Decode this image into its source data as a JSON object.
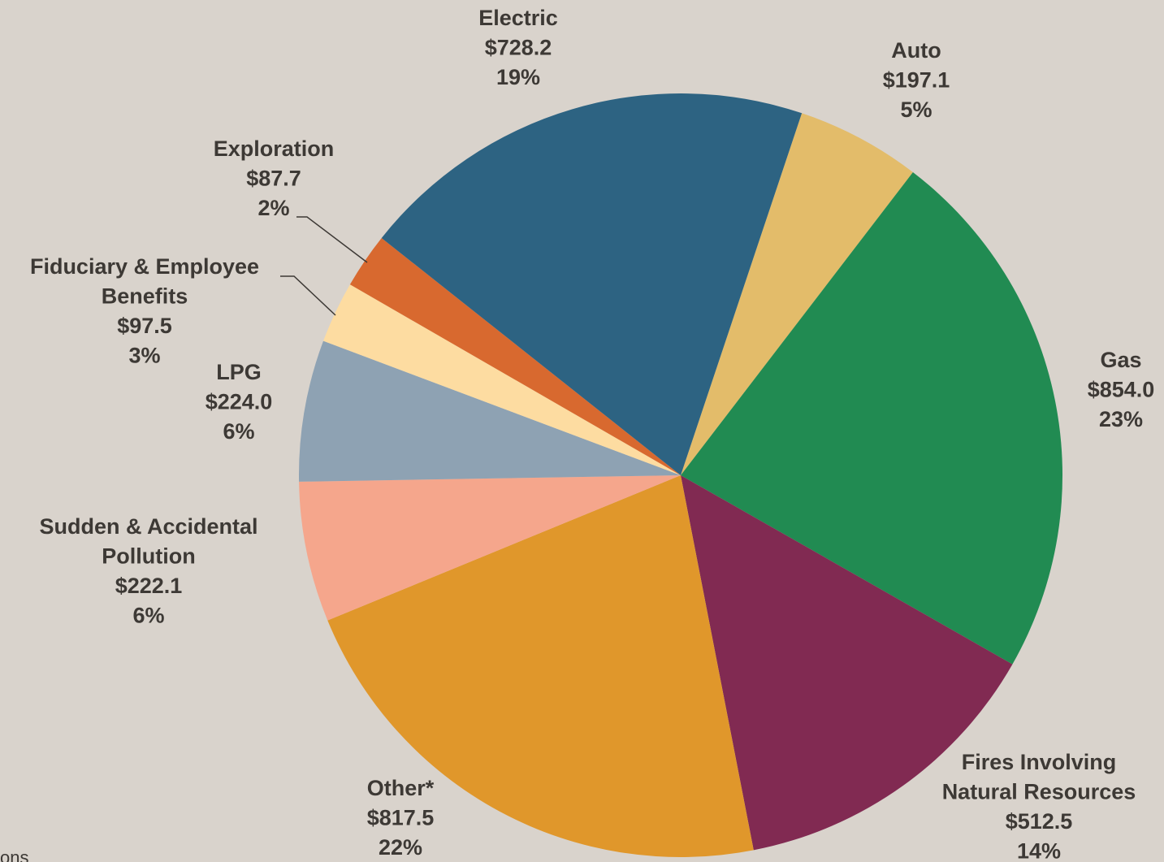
{
  "chart_data": {
    "type": "pie",
    "categories": [
      [
        "Auto"
      ],
      [
        "Gas"
      ],
      [
        "Fires Involving",
        "Natural Resources"
      ],
      [
        "Other*"
      ],
      [
        "Sudden & Accidental",
        "Pollution"
      ],
      [
        "LPG"
      ],
      [
        "Fiduciary & Employee",
        "Benefits"
      ],
      [
        "Exploration"
      ],
      [
        "Electric"
      ]
    ],
    "values": [
      197.1,
      854.0,
      512.5,
      817.5,
      222.1,
      224.0,
      97.5,
      87.7,
      728.2
    ],
    "value_labels": [
      "$197.1",
      "$854.0",
      "$512.5",
      "$817.5",
      "$222.1",
      "$224.0",
      "$97.5",
      "$87.7",
      "$728.2"
    ],
    "percent_labels": [
      "5%",
      "23%",
      "14%",
      "22%",
      "6%",
      "6%",
      "3%",
      "2%",
      "19%"
    ],
    "colors": [
      "#e3bc6a",
      "#218b52",
      "#812a52",
      "#e0972b",
      "#f5a68c",
      "#8ea2b3",
      "#fddca1",
      "#d8692f",
      "#2d6382"
    ],
    "footnote": "ons"
  }
}
